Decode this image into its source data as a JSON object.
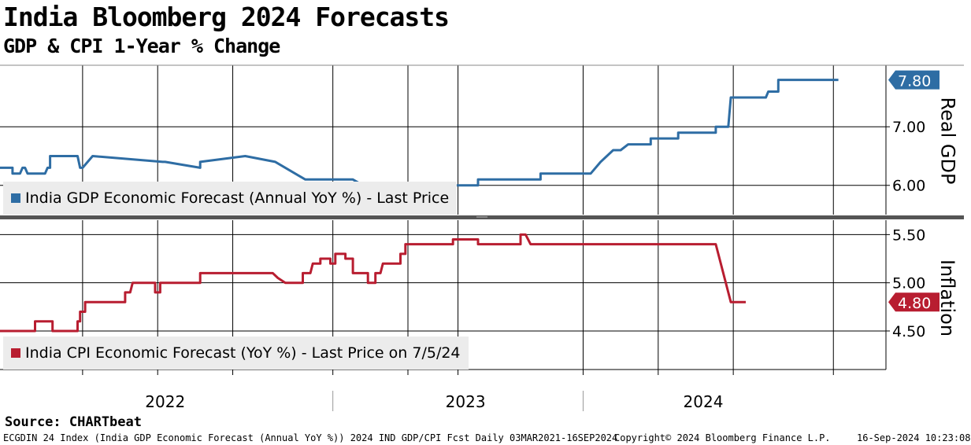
{
  "title": "India Bloomberg 2024 Forecasts",
  "subtitle": "GDP & CPI 1-Year % Change",
  "source": "Source:  CHARTbeat",
  "footer": {
    "left": "ECGDIN 24 Index (India GDP Economic Forecast (Annual YoY %)) 2024 IND GDP/CPI Fcst  Daily 03MAR2021-16SEP2024",
    "center": "Copyright© 2024 Bloomberg Finance L.P.",
    "right": "16-Sep-2024 10:23:08"
  },
  "colors": {
    "gdp": "#2e6da4",
    "cpi": "#b81d30"
  },
  "chart_data": [
    {
      "type": "line",
      "name": "gdp-panel",
      "axis_title": "Real GDP",
      "legend": "India GDP Economic Forecast (Annual YoY %) - Last Price",
      "last_value_label": "7.80",
      "last_value": 7.8,
      "ylim": [
        5.5,
        8.05
      ],
      "yticks": [
        6.0,
        7.0
      ],
      "ytick_labels": [
        "6.00",
        "7.00"
      ],
      "xlim": [
        2021.17,
        2024.71
      ],
      "x": [
        2021.17,
        2021.22,
        2021.22,
        2021.25,
        2021.26,
        2021.27,
        2021.28,
        2021.35,
        2021.36,
        2021.37,
        2021.37,
        2021.48,
        2021.49,
        2021.5,
        2021.54,
        2021.54,
        2021.82,
        2021.83,
        2021.97,
        2021.97,
        2022.15,
        2022.15,
        2022.27,
        2022.27,
        2022.39,
        2022.41,
        2022.42,
        2022.51,
        2022.52,
        2022.58,
        2022.62,
        2022.74,
        2022.8,
        2022.82,
        2023.08,
        2023.08,
        2023.18,
        2023.18,
        2023.33,
        2023.33,
        2023.53,
        2023.57,
        2023.57,
        2023.62,
        2023.62,
        2023.64,
        2023.65,
        2023.68,
        2023.77,
        2023.77,
        2023.88,
        2023.88,
        2024.03,
        2024.03,
        2024.06,
        2024.08,
        2024.09,
        2024.23,
        2024.24,
        2024.28,
        2024.28,
        2024.4,
        2024.4,
        2024.52
      ],
      "y": [
        6.3,
        6.3,
        6.2,
        6.2,
        6.3,
        6.3,
        6.2,
        6.2,
        6.3,
        6.3,
        6.5,
        6.5,
        6.3,
        6.3,
        6.5,
        6.5,
        6.4,
        6.4,
        6.3,
        6.4,
        6.5,
        6.5,
        6.4,
        6.4,
        6.1,
        6.1,
        6.1,
        6.1,
        6.1,
        6.1,
        6.0,
        6.0,
        6.0,
        6.0,
        6.0,
        6.1,
        6.1,
        6.1,
        6.1,
        6.2,
        6.2,
        6.4,
        6.4,
        6.6,
        6.6,
        6.6,
        6.6,
        6.7,
        6.7,
        6.8,
        6.8,
        6.9,
        6.9,
        7.0,
        7.0,
        7.0,
        7.5,
        7.5,
        7.6,
        7.6,
        7.8,
        7.8,
        7.8,
        7.8
      ]
    },
    {
      "type": "line",
      "name": "cpi-panel",
      "axis_title": "Inflation",
      "legend": "India CPI Economic Forecast (YoY %) - Last Price on 7/5/24",
      "last_value_label": "4.80",
      "last_value": 4.8,
      "ylim": [
        4.1,
        5.65
      ],
      "yticks": [
        4.5,
        5.0,
        5.5
      ],
      "ytick_labels": [
        "4.50",
        "5.00",
        "5.50"
      ],
      "xlim": [
        2021.17,
        2024.71
      ],
      "x": [
        2021.17,
        2021.29,
        2021.29,
        2021.31,
        2021.31,
        2021.38,
        2021.38,
        2021.48,
        2021.48,
        2021.49,
        2021.49,
        2021.5,
        2021.51,
        2021.51,
        2021.54,
        2021.54,
        2021.67,
        2021.67,
        2021.67,
        2021.69,
        2021.7,
        2021.7,
        2021.79,
        2021.79,
        2021.81,
        2021.81,
        2021.97,
        2021.97,
        2022.26,
        2022.26,
        2022.28,
        2022.31,
        2022.38,
        2022.38,
        2022.41,
        2022.42,
        2022.45,
        2022.45,
        2022.49,
        2022.49,
        2022.51,
        2022.51,
        2022.55,
        2022.55,
        2022.58,
        2022.58,
        2022.64,
        2022.64,
        2022.67,
        2022.67,
        2022.69,
        2022.7,
        2022.77,
        2022.77,
        2022.79,
        2022.79,
        2022.98,
        2022.98,
        2023.08,
        2023.08,
        2023.18,
        2023.2,
        2023.2,
        2023.23,
        2023.24,
        2023.24,
        2023.25,
        2023.25,
        2023.27,
        2023.28,
        2023.29,
        2023.29,
        2023.3,
        2023.31,
        2023.4,
        2023.4,
        2023.47,
        2023.47,
        2023.48,
        2023.48,
        2023.62,
        2023.63,
        2023.63,
        2023.64,
        2023.65,
        2023.67,
        2023.67,
        2023.91,
        2023.91,
        2024.03,
        2024.09,
        2024.15,
        2024.15
      ],
      "y": [
        4.5,
        4.5,
        4.5,
        4.5,
        4.6,
        4.6,
        4.5,
        4.5,
        4.6,
        4.6,
        4.7,
        4.7,
        4.7,
        4.8,
        4.8,
        4.8,
        4.8,
        4.8,
        4.9,
        4.9,
        5.0,
        5.0,
        5.0,
        4.9,
        4.9,
        5.0,
        5.0,
        5.1,
        5.1,
        5.1,
        5.05,
        5.0,
        5.0,
        5.1,
        5.1,
        5.2,
        5.2,
        5.25,
        5.25,
        5.2,
        5.2,
        5.3,
        5.3,
        5.25,
        5.25,
        5.1,
        5.1,
        5.0,
        5.0,
        5.1,
        5.1,
        5.2,
        5.2,
        5.3,
        5.3,
        5.4,
        5.4,
        5.45,
        5.45,
        5.4,
        5.4,
        5.4,
        5.4,
        5.4,
        5.4,
        5.4,
        5.4,
        5.5,
        5.5,
        5.45,
        5.4,
        5.4,
        5.4,
        5.4,
        5.4,
        5.4,
        5.4,
        5.4,
        5.4,
        5.4,
        5.4,
        5.4,
        5.4,
        5.4,
        5.4,
        5.4,
        5.4,
        5.4,
        5.4,
        5.4,
        4.8,
        4.8,
        4.8
      ]
    }
  ],
  "x_axis": {
    "year_labels": [
      "2022",
      "2023",
      "2024"
    ],
    "year_centers": [
      2021.83,
      2023.03,
      2023.98
    ],
    "year_dividers": [
      2022.5,
      2023.5
    ],
    "gridlines": [
      2021.5,
      2021.8,
      2022.1,
      2022.5,
      2022.8,
      2023.0,
      2023.5,
      2023.8,
      2024.1,
      2024.5
    ]
  }
}
